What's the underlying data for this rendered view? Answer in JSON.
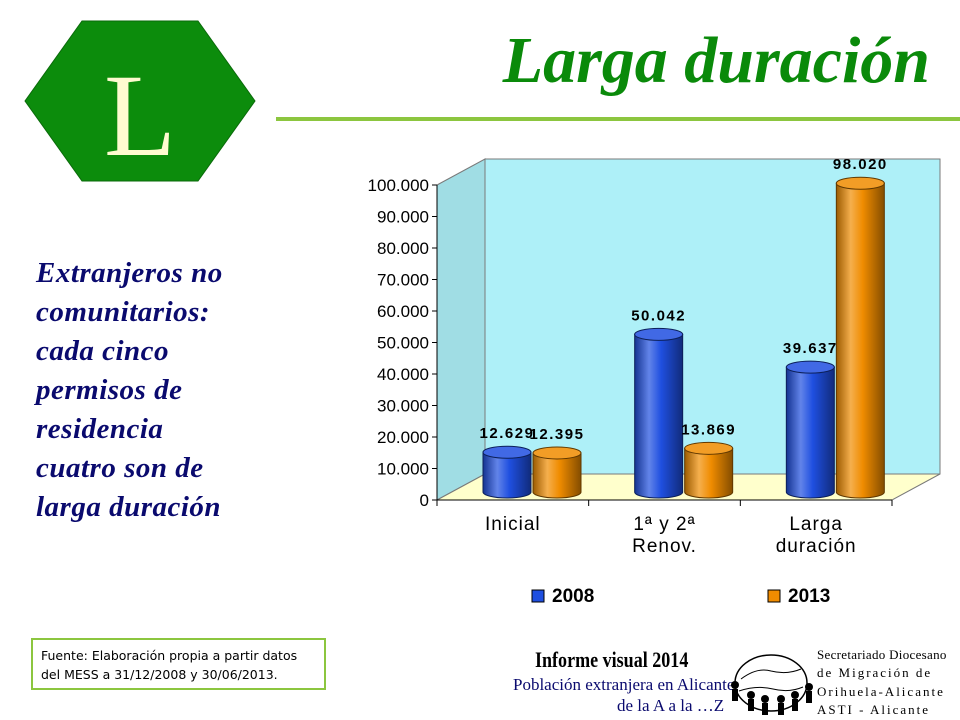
{
  "slide": {
    "letter": "L",
    "title": "Larga duración",
    "side_text": [
      "Extranjeros no",
      "comunitarios:",
      "cada cinco",
      "permisos de",
      "residencia",
      "cuatro son de",
      "larga duración"
    ],
    "source": [
      "Fuente: Elaboración propia a partir datos",
      "del MESS a 31/12/2008 y 30/06/2013."
    ]
  },
  "footer": {
    "title": "Informe visual 2014",
    "subtitle_1": "Población extranjera en Alicante",
    "subtitle_2": "de la A a la …Z",
    "org": [
      "Secretariado Diocesano",
      "de Migración de",
      "Orihuela-Alicante",
      "ASTI - Alicante"
    ]
  },
  "colors": {
    "hexagon_fill": "#0c8c0c",
    "letter": "#fffbd0",
    "title": "#0a8a0a",
    "rule": "#8cc63f",
    "wall": "#aef0f8",
    "floor": "#ffffcc",
    "series_2008": "#1f4fe0",
    "series_2013": "#f08c00"
  },
  "chart_data": {
    "type": "bar",
    "categories": [
      [
        "Inicial"
      ],
      [
        "1ª y 2ª",
        "Renov."
      ],
      [
        "Larga",
        "duración"
      ]
    ],
    "series": [
      {
        "name": "2008",
        "values": [
          12629,
          50042,
          39637
        ],
        "labels": [
          "12.629",
          "50.042",
          "39.637"
        ]
      },
      {
        "name": "2013",
        "values": [
          12395,
          13869,
          98020
        ],
        "labels": [
          "12.395",
          "13.869",
          "98.020"
        ]
      }
    ],
    "ylim": [
      0,
      100000
    ],
    "yticks": [
      {
        "value": 0,
        "label": "0"
      },
      {
        "value": 10000,
        "label": "10.000"
      },
      {
        "value": 20000,
        "label": "20.000"
      },
      {
        "value": 30000,
        "label": "30.000"
      },
      {
        "value": 40000,
        "label": "40.000"
      },
      {
        "value": 50000,
        "label": "50.000"
      },
      {
        "value": 60000,
        "label": "60.000"
      },
      {
        "value": 70000,
        "label": "70.000"
      },
      {
        "value": 80000,
        "label": "80.000"
      },
      {
        "value": 90000,
        "label": "90.000"
      },
      {
        "value": 100000,
        "label": "100.000"
      }
    ],
    "legend_position": "bottom",
    "grid": false,
    "style": "3d-cylinder"
  }
}
